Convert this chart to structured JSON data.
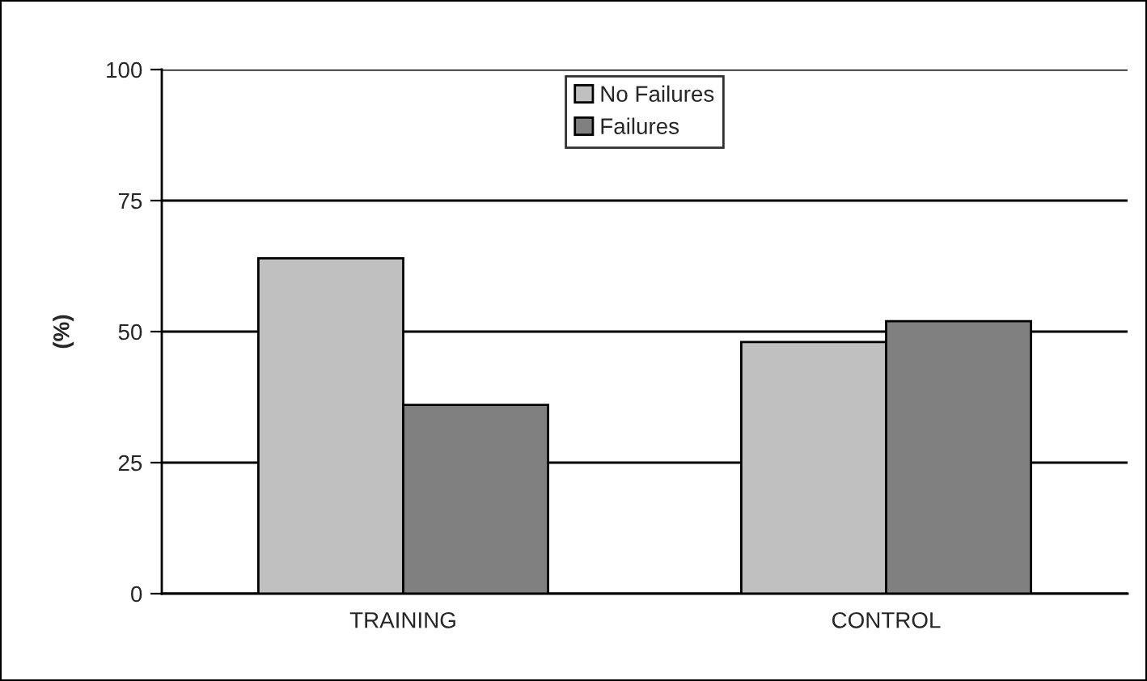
{
  "chart_data": {
    "type": "bar",
    "ylabel": "(%)",
    "categories": [
      "TRAINING",
      "CONTROL"
    ],
    "series": [
      {
        "name": "No Failures",
        "color": "#c0c0c0",
        "values": [
          64,
          48
        ]
      },
      {
        "name": "Failures",
        "color": "#808080",
        "values": [
          36,
          52
        ]
      }
    ],
    "ylim": [
      0,
      100
    ],
    "yticks": [
      0,
      25,
      50,
      75,
      100
    ],
    "grid": "y",
    "legend": "top"
  }
}
